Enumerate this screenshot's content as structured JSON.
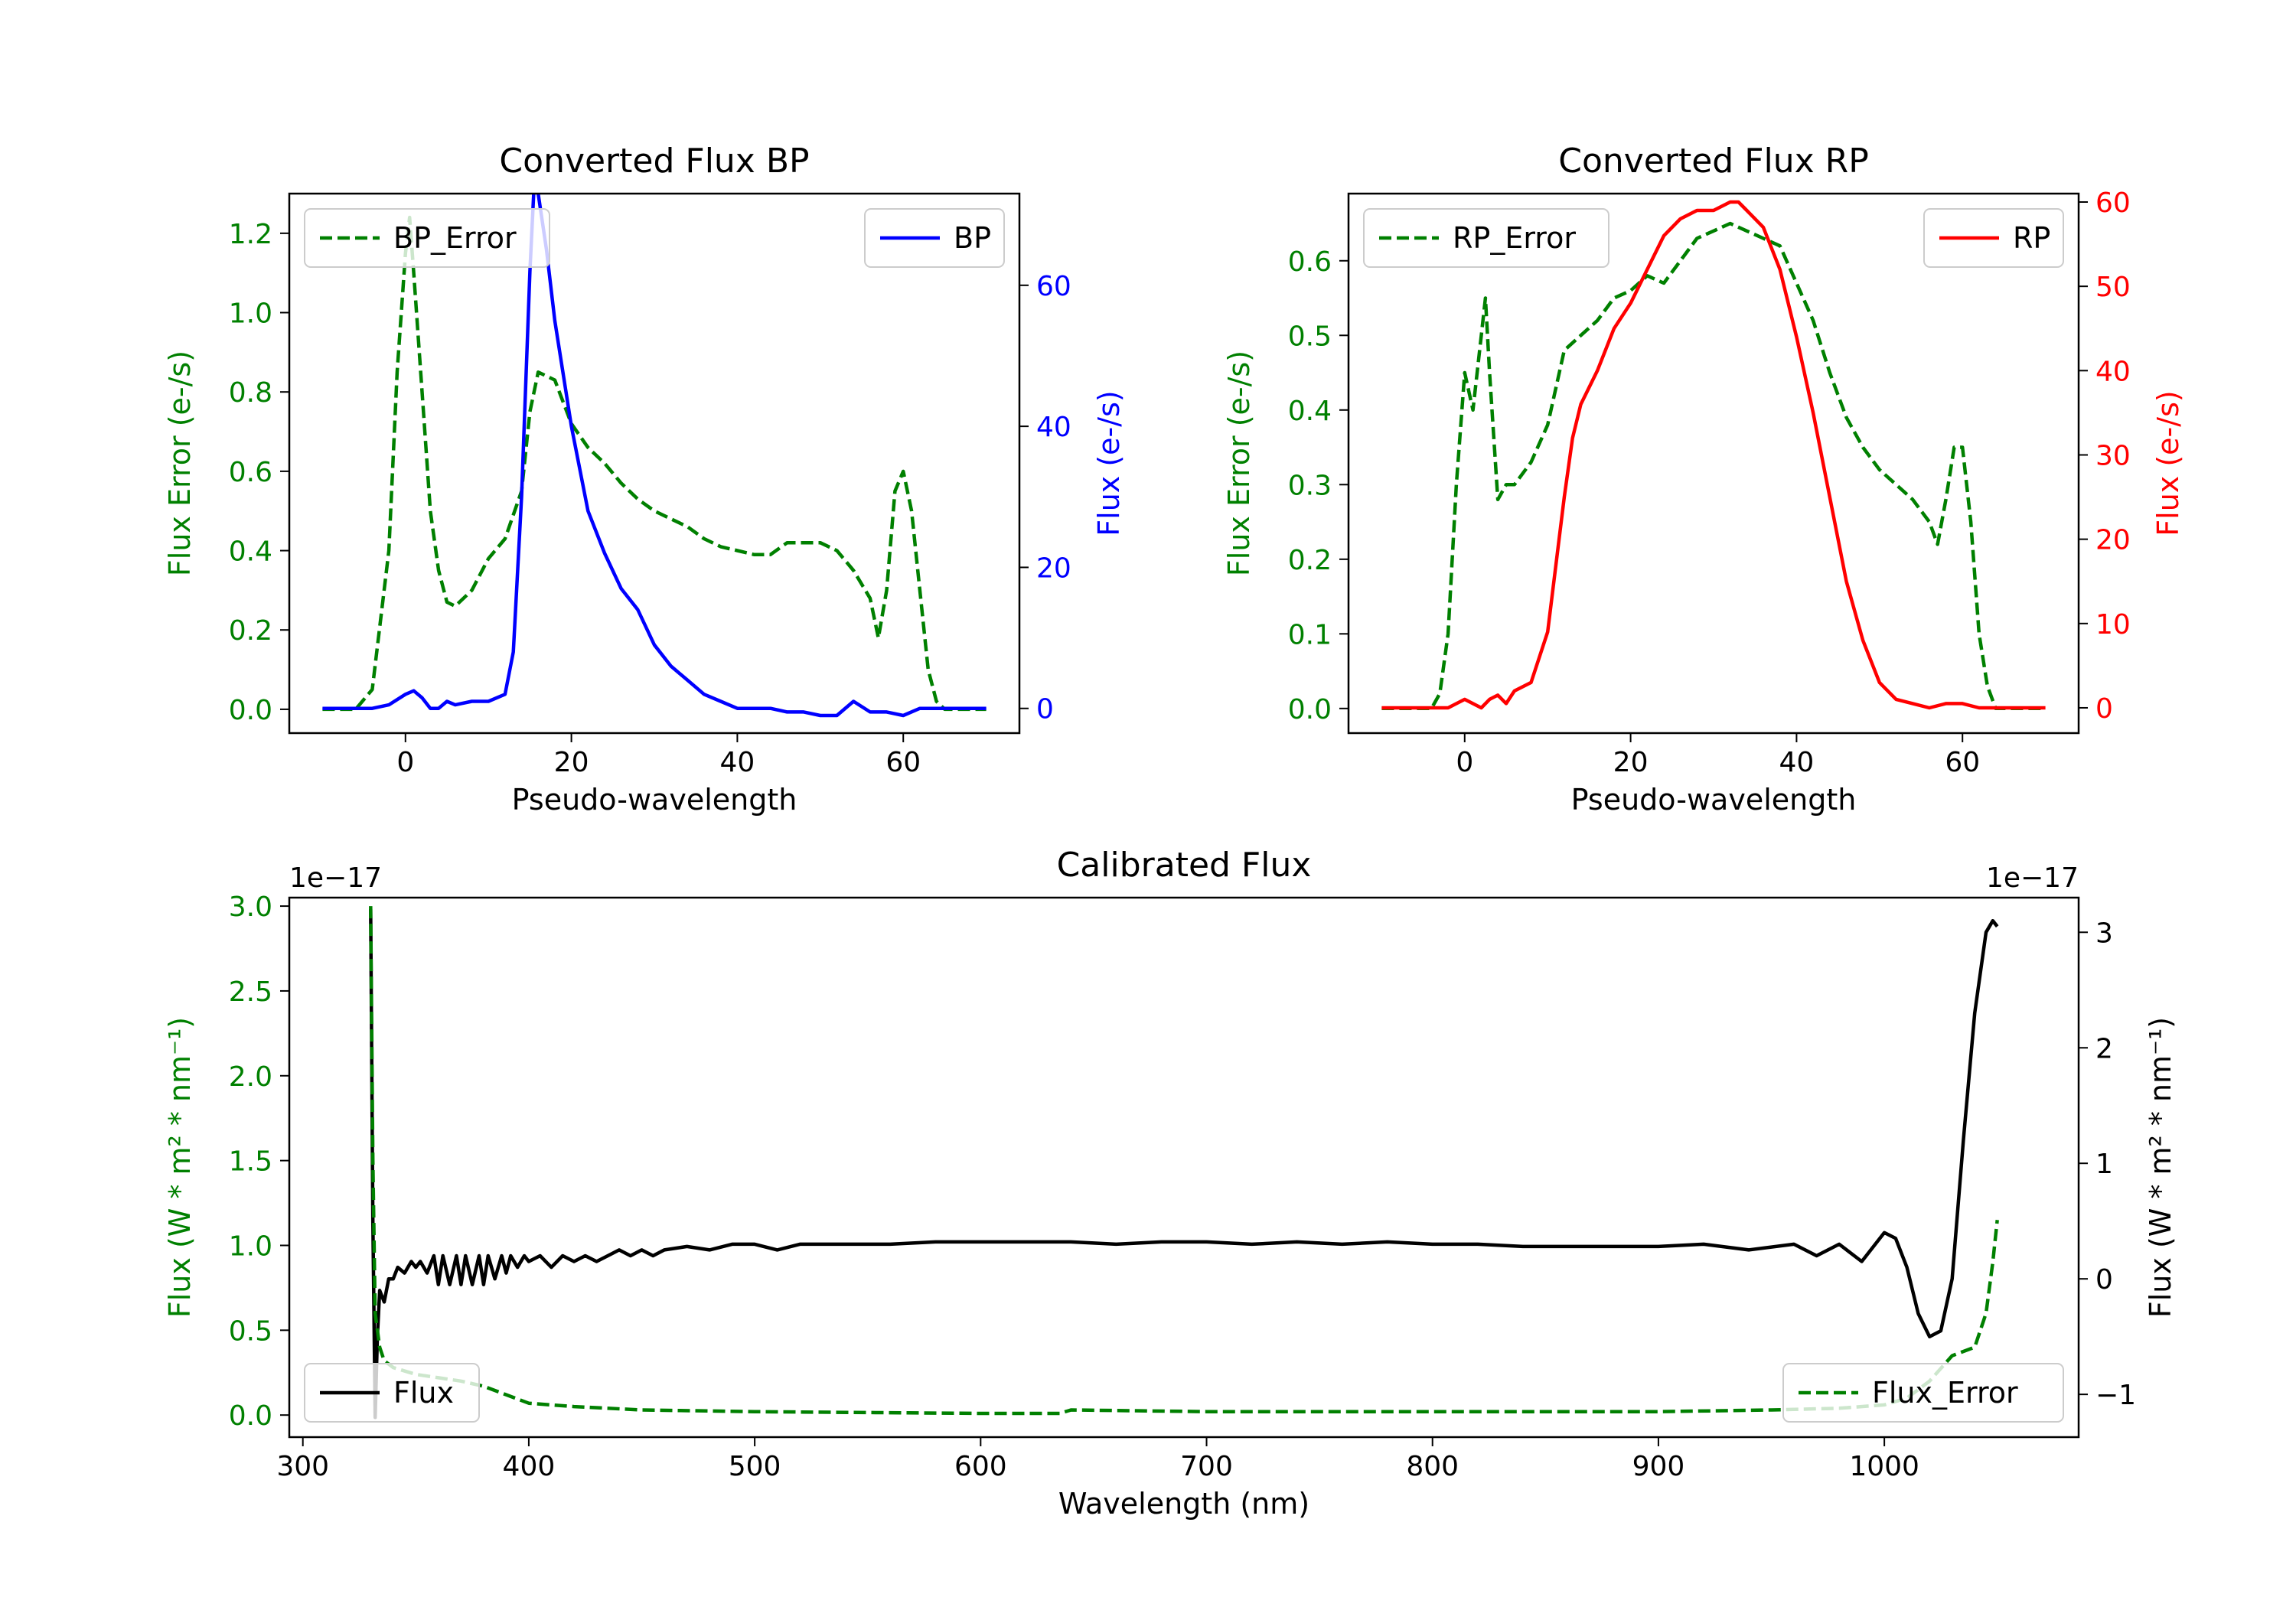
{
  "colors": {
    "error": "#008000",
    "bp": "#0000ff",
    "rp": "#ff0000",
    "flux": "#000000"
  },
  "chart_data": [
    {
      "type": "line",
      "title": "Converted Flux BP",
      "xlabel": "Pseudo-wavelength",
      "ylabel_left": "Flux Error (e-/s)",
      "ylabel_right": "Flux (e-/s)",
      "xlim": [
        -14,
        74
      ],
      "ylim_left": [
        -0.06,
        1.3
      ],
      "ylim_right": [
        -3.5,
        73
      ],
      "xticks": [
        0,
        20,
        40,
        60
      ],
      "yticks_left": [
        0.0,
        0.2,
        0.4,
        0.6,
        0.8,
        1.0,
        1.2
      ],
      "yticks_right": [
        0,
        20,
        40,
        60
      ],
      "xtick_labels": [
        "0",
        "20",
        "40",
        "60"
      ],
      "ytick_labels_left": [
        "0.0",
        "0.2",
        "0.4",
        "0.6",
        "0.8",
        "1.0",
        "1.2"
      ],
      "ytick_labels_right": [
        "0",
        "20",
        "40",
        "60"
      ],
      "legend_left": "BP_Error",
      "legend_right": "BP",
      "series": [
        {
          "name": "BP_Error",
          "axis": "left",
          "style": "dashed",
          "color": "#008000",
          "x": [
            -10,
            -6,
            -4,
            -2,
            -1,
            0,
            0.5,
            1,
            2,
            3,
            4,
            5,
            6,
            8,
            10,
            12,
            14,
            15,
            16,
            18,
            20,
            22,
            24,
            26,
            28,
            30,
            32,
            34,
            36,
            38,
            40,
            42,
            44,
            46,
            48,
            50,
            52,
            54,
            56,
            57,
            58,
            59,
            60,
            61,
            62,
            63,
            64,
            65,
            70
          ],
          "y": [
            0,
            0,
            0.05,
            0.4,
            0.85,
            1.15,
            1.24,
            1.1,
            0.8,
            0.5,
            0.35,
            0.27,
            0.26,
            0.3,
            0.38,
            0.43,
            0.55,
            0.75,
            0.85,
            0.83,
            0.72,
            0.66,
            0.62,
            0.57,
            0.53,
            0.5,
            0.48,
            0.46,
            0.43,
            0.41,
            0.4,
            0.39,
            0.39,
            0.42,
            0.42,
            0.42,
            0.4,
            0.35,
            0.28,
            0.18,
            0.3,
            0.55,
            0.6,
            0.5,
            0.3,
            0.1,
            0.02,
            0,
            0
          ]
        },
        {
          "name": "BP",
          "axis": "right",
          "style": "solid",
          "color": "#0000ff",
          "x": [
            -10,
            -4,
            -2,
            0,
            1,
            2,
            3,
            4,
            5,
            6,
            8,
            10,
            12,
            13,
            14,
            15,
            15.5,
            16,
            17,
            18,
            20,
            22,
            24,
            26,
            28,
            30,
            32,
            34,
            36,
            38,
            40,
            42,
            44,
            46,
            48,
            50,
            52,
            54,
            56,
            58,
            60,
            62,
            64,
            66,
            68,
            70
          ],
          "y": [
            0,
            0,
            0.5,
            2,
            2.5,
            1.5,
            0,
            0,
            1,
            0.5,
            1,
            1,
            2,
            8,
            30,
            62,
            74,
            73,
            65,
            55,
            40,
            28,
            22,
            17,
            14,
            9,
            6,
            4,
            2,
            1,
            0,
            0,
            0,
            -0.5,
            -0.5,
            -1,
            -1,
            1,
            -0.5,
            -0.5,
            -1,
            0,
            0,
            0,
            0,
            0
          ]
        }
      ]
    },
    {
      "type": "line",
      "title": "Converted Flux RP",
      "xlabel": "Pseudo-wavelength",
      "ylabel_left": "Flux Error (e-/s)",
      "ylabel_right": "Flux (e-/s)",
      "xlim": [
        -14,
        74
      ],
      "ylim_left": [
        -0.033,
        0.69
      ],
      "ylim_right": [
        -3,
        61
      ],
      "xticks": [
        0,
        20,
        40,
        60
      ],
      "yticks_left": [
        0.0,
        0.1,
        0.2,
        0.3,
        0.4,
        0.5,
        0.6
      ],
      "yticks_right": [
        0,
        10,
        20,
        30,
        40,
        50,
        60
      ],
      "xtick_labels": [
        "0",
        "20",
        "40",
        "60"
      ],
      "ytick_labels_left": [
        "0.0",
        "0.1",
        "0.2",
        "0.3",
        "0.4",
        "0.5",
        "0.6"
      ],
      "ytick_labels_right": [
        "0",
        "10",
        "20",
        "30",
        "40",
        "50",
        "60"
      ],
      "legend_left": "RP_Error",
      "legend_right": "RP",
      "series": [
        {
          "name": "RP_Error",
          "axis": "left",
          "style": "dashed",
          "color": "#008000",
          "x": [
            -10,
            -4,
            -3,
            -2,
            -1,
            0,
            1,
            2,
            2.5,
            3,
            4,
            5,
            6,
            8,
            10,
            12,
            14,
            16,
            18,
            20,
            22,
            24,
            26,
            28,
            30,
            32,
            34,
            36,
            38,
            40,
            42,
            44,
            46,
            48,
            50,
            52,
            54,
            56,
            57,
            58,
            59,
            60,
            61,
            62,
            63,
            64,
            70
          ],
          "y": [
            0,
            0,
            0.02,
            0.1,
            0.3,
            0.45,
            0.4,
            0.5,
            0.55,
            0.45,
            0.28,
            0.3,
            0.3,
            0.33,
            0.38,
            0.48,
            0.5,
            0.52,
            0.55,
            0.56,
            0.58,
            0.57,
            0.6,
            0.63,
            0.64,
            0.65,
            0.64,
            0.63,
            0.62,
            0.57,
            0.52,
            0.45,
            0.39,
            0.35,
            0.32,
            0.3,
            0.28,
            0.25,
            0.22,
            0.28,
            0.35,
            0.35,
            0.25,
            0.1,
            0.03,
            0,
            0
          ]
        },
        {
          "name": "RP",
          "axis": "right",
          "style": "solid",
          "color": "#ff0000",
          "x": [
            -10,
            -4,
            -2,
            0,
            2,
            3,
            4,
            5,
            6,
            8,
            10,
            12,
            13,
            14,
            16,
            18,
            20,
            22,
            24,
            26,
            28,
            30,
            32,
            33,
            34,
            36,
            38,
            40,
            42,
            44,
            46,
            48,
            50,
            52,
            54,
            56,
            58,
            60,
            62,
            70
          ],
          "y": [
            0,
            0,
            0,
            1,
            0,
            1,
            1.5,
            0.5,
            2,
            3,
            9,
            25,
            32,
            36,
            40,
            45,
            48,
            52,
            56,
            58,
            59,
            59,
            60,
            60,
            59,
            57,
            52,
            44,
            35,
            25,
            15,
            8,
            3,
            1,
            0.5,
            0,
            0.5,
            0.5,
            0,
            0
          ]
        }
      ]
    },
    {
      "type": "line",
      "title": "Calibrated Flux",
      "xlabel": "Wavelength (nm)",
      "ylabel_left": "Flux (W * m² * nm⁻¹)",
      "ylabel_right": "Flux (W * m² * nm⁻¹)",
      "offset_left": "1e−17",
      "offset_right": "1e−17",
      "xlim": [
        294,
        1086
      ],
      "ylim_left": [
        -0.13,
        3.05
      ],
      "ylim_right": [
        -1.37,
        3.3
      ],
      "xticks": [
        300,
        400,
        500,
        600,
        700,
        800,
        900,
        1000
      ],
      "yticks_left": [
        0.0,
        0.5,
        1.0,
        1.5,
        2.0,
        2.5,
        3.0
      ],
      "yticks_right": [
        -1,
        0,
        1,
        2,
        3
      ],
      "xtick_labels": [
        "300",
        "400",
        "500",
        "600",
        "700",
        "800",
        "900",
        "1000"
      ],
      "ytick_labels_left": [
        "0.0",
        "0.5",
        "1.0",
        "1.5",
        "2.0",
        "2.5",
        "3.0"
      ],
      "ytick_labels_right": [
        "−1",
        "0",
        "1",
        "2",
        "3"
      ],
      "legend_left": "Flux",
      "legend_right": "Flux_Error",
      "series": [
        {
          "name": "Flux",
          "axis": "right",
          "style": "solid",
          "color": "#000000",
          "x": [
            330,
            331,
            332,
            333,
            334,
            336,
            338,
            340,
            342,
            345,
            348,
            350,
            352,
            355,
            358,
            360,
            362,
            365,
            368,
            370,
            372,
            375,
            378,
            380,
            382,
            385,
            388,
            390,
            392,
            395,
            398,
            400,
            405,
            410,
            415,
            420,
            425,
            430,
            435,
            440,
            445,
            450,
            455,
            460,
            470,
            480,
            490,
            500,
            510,
            520,
            530,
            540,
            560,
            580,
            600,
            620,
            640,
            660,
            680,
            700,
            720,
            740,
            760,
            780,
            800,
            820,
            840,
            860,
            880,
            900,
            920,
            940,
            960,
            970,
            980,
            990,
            1000,
            1005,
            1010,
            1015,
            1020,
            1025,
            1030,
            1035,
            1040,
            1045,
            1048,
            1050
          ],
          "y": [
            3.2,
            0.5,
            -1.2,
            -0.5,
            -0.1,
            -0.2,
            0,
            0.0,
            0.1,
            0.05,
            0.15,
            0.1,
            0.15,
            0.05,
            0.2,
            -0.05,
            0.2,
            -0.05,
            0.2,
            -0.05,
            0.2,
            -0.05,
            0.2,
            -0.05,
            0.2,
            0.0,
            0.2,
            0.05,
            0.2,
            0.1,
            0.2,
            0.15,
            0.2,
            0.1,
            0.2,
            0.15,
            0.2,
            0.15,
            0.2,
            0.25,
            0.2,
            0.25,
            0.2,
            0.25,
            0.28,
            0.25,
            0.3,
            0.3,
            0.25,
            0.3,
            0.3,
            0.3,
            0.3,
            0.32,
            0.32,
            0.32,
            0.32,
            0.3,
            0.32,
            0.32,
            0.3,
            0.32,
            0.3,
            0.32,
            0.3,
            0.3,
            0.28,
            0.28,
            0.28,
            0.28,
            0.3,
            0.25,
            0.3,
            0.2,
            0.3,
            0.15,
            0.4,
            0.35,
            0.1,
            -0.3,
            -0.5,
            -0.45,
            0.0,
            1.2,
            2.3,
            3.0,
            3.1,
            3.05
          ]
        },
        {
          "name": "Flux_Error",
          "axis": "left",
          "style": "dashed",
          "color": "#008000",
          "x": [
            330,
            331,
            332,
            334,
            336,
            340,
            350,
            360,
            370,
            380,
            390,
            400,
            420,
            450,
            500,
            550,
            600,
            635,
            640,
            700,
            800,
            900,
            950,
            980,
            1000,
            1010,
            1020,
            1030,
            1040,
            1045,
            1048,
            1050
          ],
          "y": [
            3.0,
            1.5,
            0.6,
            0.4,
            0.32,
            0.28,
            0.24,
            0.22,
            0.2,
            0.17,
            0.12,
            0.07,
            0.05,
            0.03,
            0.02,
            0.015,
            0.01,
            0.01,
            0.03,
            0.02,
            0.02,
            0.02,
            0.03,
            0.04,
            0.06,
            0.1,
            0.2,
            0.35,
            0.4,
            0.6,
            0.9,
            1.15
          ]
        }
      ]
    }
  ]
}
